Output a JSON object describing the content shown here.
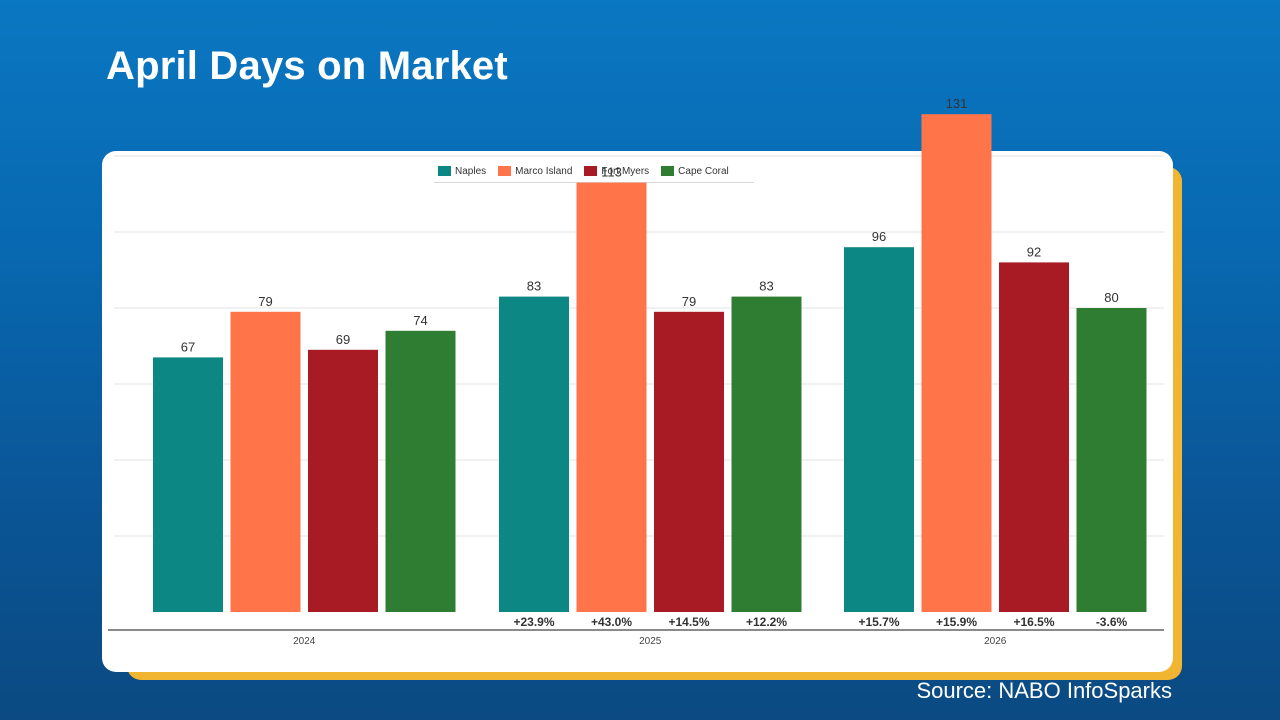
{
  "slide": {
    "title": "April Days on Market",
    "source": "Source: NABO InfoSparks"
  },
  "colors": {
    "Naples": "#0d8784",
    "Marco Island": "#ff7448",
    "Fort Myers": "#a81b24",
    "Cape Coral": "#2e7d32"
  },
  "chart_data": {
    "type": "bar",
    "categories": [
      "2024",
      "2025",
      "2026"
    ],
    "series": [
      {
        "name": "Naples",
        "values": [
          67,
          83,
          96
        ],
        "changes": [
          "",
          "+23.9%",
          "+15.7%"
        ]
      },
      {
        "name": "Marco Island",
        "values": [
          79,
          113,
          131
        ],
        "changes": [
          "",
          "+43.0%",
          "+15.9%"
        ]
      },
      {
        "name": "Fort Myers",
        "values": [
          69,
          79,
          92
        ],
        "changes": [
          "",
          "+14.5%",
          "+16.5%"
        ]
      },
      {
        "name": "Cape Coral",
        "values": [
          74,
          83,
          80
        ],
        "changes": [
          "",
          "+12.2%",
          "-3.6%"
        ]
      }
    ],
    "ylim": [
      0,
      140
    ],
    "grid": true,
    "legend": "top-center"
  }
}
